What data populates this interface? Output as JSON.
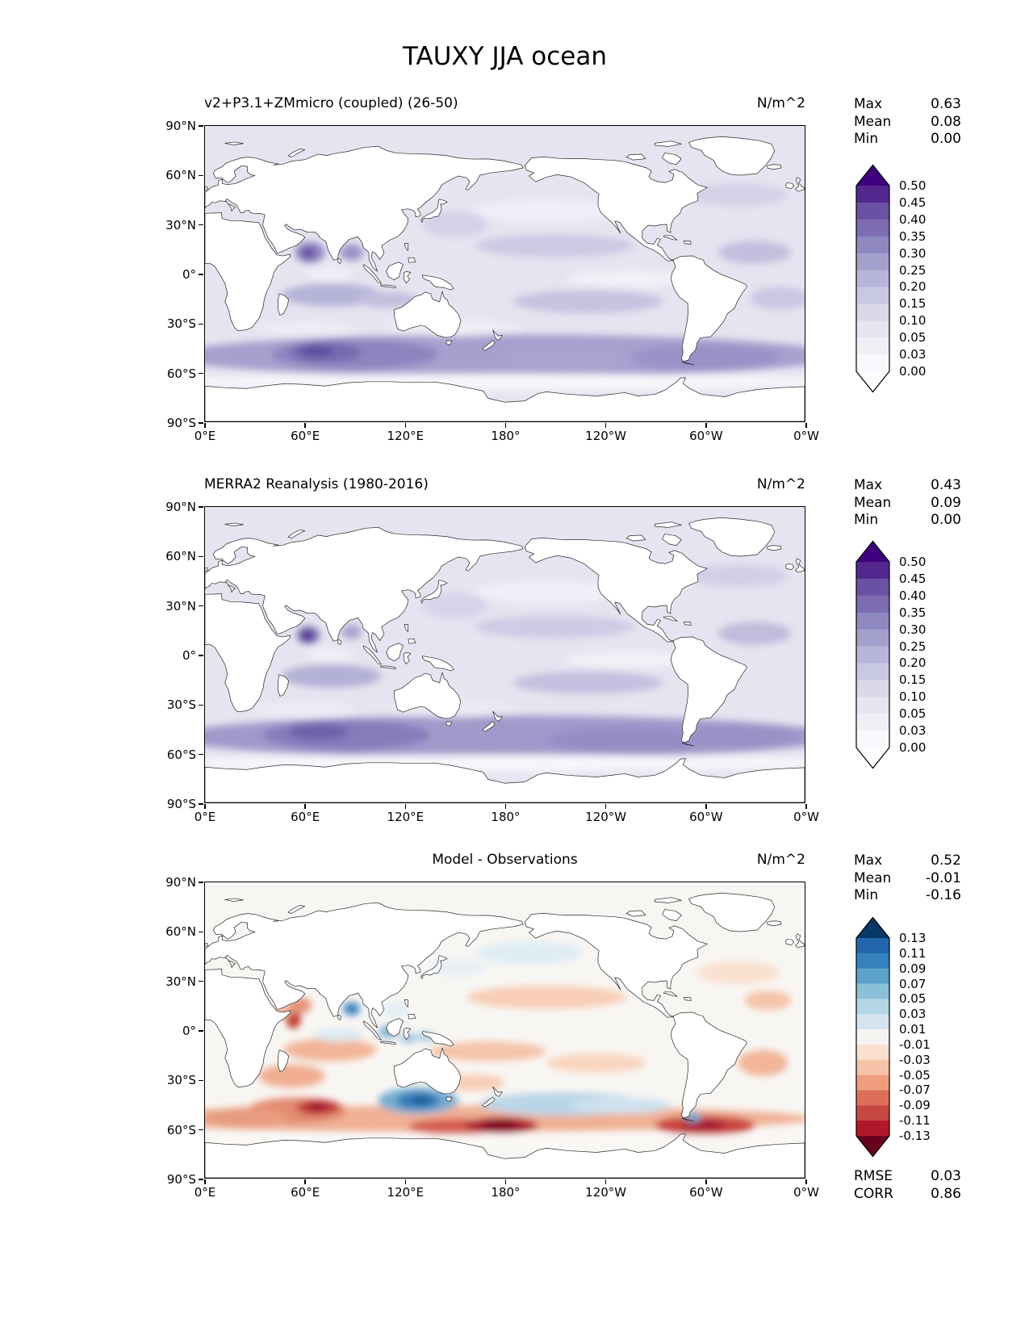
{
  "figure_title": "TAUXY JJA ocean",
  "panels": [
    {
      "title": "v2+P3.1+ZMmicro (coupled) (26-50)",
      "units": "N/m^2",
      "stats": [
        {
          "label": "Max",
          "value": "0.63"
        },
        {
          "label": "Mean",
          "value": "0.08"
        },
        {
          "label": "Min",
          "value": "0.00"
        }
      ]
    },
    {
      "title": "MERRA2 Reanalysis (1980-2016)",
      "units": "N/m^2",
      "stats": [
        {
          "label": "Max",
          "value": "0.43"
        },
        {
          "label": "Mean",
          "value": "0.09"
        },
        {
          "label": "Min",
          "value": "0.00"
        }
      ]
    },
    {
      "title": "Model - Observations",
      "units": "N/m^2",
      "stats": [
        {
          "label": "Max",
          "value": "0.52"
        },
        {
          "label": "Mean",
          "value": "-0.01"
        },
        {
          "label": "Min",
          "value": "-0.16"
        }
      ]
    }
  ],
  "summary": [
    {
      "label": "RMSE",
      "value": "0.03"
    },
    {
      "label": "CORR",
      "value": "0.86"
    }
  ],
  "axes": {
    "lon_labels": [
      "0°E",
      "60°E",
      "120°E",
      "180°",
      "120°W",
      "60°W",
      "0°W"
    ],
    "lat_labels": [
      "90°N",
      "60°N",
      "30°N",
      "0°",
      "30°S",
      "60°S",
      "90°S"
    ]
  },
  "colorbars": [
    {
      "ticks": [
        "0.50",
        "0.45",
        "0.40",
        "0.35",
        "0.30",
        "0.25",
        "0.20",
        "0.15",
        "0.10",
        "0.05",
        "0.03",
        "0.00"
      ],
      "extend_top": "#3f007d",
      "extend_bottom": "#fcfbfd",
      "segment_colors": [
        "#54278f",
        "#6a51a3",
        "#7d6cb0",
        "#8f88c0",
        "#a3a0cd",
        "#b7b5d9",
        "#c9c8e2",
        "#d9d9ea",
        "#e6e5f1",
        "#f0eff6",
        "#f8f7fb"
      ]
    },
    {
      "ticks": [
        "0.50",
        "0.45",
        "0.40",
        "0.35",
        "0.30",
        "0.25",
        "0.20",
        "0.15",
        "0.10",
        "0.05",
        "0.03",
        "0.00"
      ],
      "extend_top": "#3f007d",
      "extend_bottom": "#fcfbfd",
      "segment_colors": [
        "#54278f",
        "#6a51a3",
        "#7d6cb0",
        "#8f88c0",
        "#a3a0cd",
        "#b7b5d9",
        "#c9c8e2",
        "#d9d9ea",
        "#e6e5f1",
        "#f0eff6",
        "#f8f7fb"
      ]
    },
    {
      "ticks": [
        "0.13",
        "0.11",
        "0.09",
        "0.07",
        "0.05",
        "0.03",
        "0.01",
        "-0.01",
        "-0.03",
        "-0.05",
        "-0.07",
        "-0.09",
        "-0.11",
        "-0.13"
      ],
      "extend_top": "#083865",
      "extend_bottom": "#67001f",
      "segment_colors": [
        "#2166ac",
        "#3581bc",
        "#5ca2cb",
        "#8bc0da",
        "#b4d6e7",
        "#d4e5f0",
        "#f6f4f1",
        "#fbe0d1",
        "#f7c3a8",
        "#ef9d7d",
        "#dd6f5a",
        "#c74843",
        "#b2182b"
      ]
    }
  ],
  "chart_data": {
    "type": "heatmap",
    "description": "Three-panel latitude/longitude filled-contour comparison of JJA zonal surface wind stress (TAUXY) over the ocean: model, MERRA2 reanalysis, and their difference. Land is masked white.",
    "projection": "equirectangular, longitude 0E to 0W (0-360), latitude 90S to 90N",
    "x_ticks_deg_east": [
      0,
      60,
      120,
      180,
      240,
      300,
      360
    ],
    "y_ticks_deg_north": [
      90,
      60,
      30,
      0,
      -30,
      -60,
      -90
    ],
    "panels": [
      {
        "title": "v2+P3.1+ZMmicro (coupled) (26-50)",
        "units": "N/m^2",
        "colormap": "Purples",
        "contour_levels": [
          0.0,
          0.03,
          0.05,
          0.1,
          0.15,
          0.2,
          0.25,
          0.3,
          0.35,
          0.4,
          0.45,
          0.5
        ],
        "max": 0.63,
        "mean": 0.08,
        "min": 0.0,
        "features": "Strong band 0.25-0.45 across Southern Ocean 40-60S (maximum in Indian sector), local maxima in Arabian Sea and Bay of Bengal, moderate trade-wind bands, near-zero along equatorial east Pacific"
      },
      {
        "title": "MERRA2 Reanalysis (1980-2016)",
        "units": "N/m^2",
        "colormap": "Purples",
        "contour_levels": [
          0.0,
          0.03,
          0.05,
          0.1,
          0.15,
          0.2,
          0.25,
          0.3,
          0.35,
          0.4,
          0.45,
          0.5
        ],
        "max": 0.43,
        "mean": 0.09,
        "min": 0.0,
        "features": "Similar Southern Ocean band, strongest localized maximum in western Arabian Sea (Somali jet), moderate trade-wind bands"
      },
      {
        "title": "Model - Observations",
        "units": "N/m^2",
        "colormap": "RdBu",
        "contour_levels": [
          -0.13,
          -0.11,
          -0.09,
          -0.07,
          -0.05,
          -0.03,
          -0.01,
          0.01,
          0.03,
          0.05,
          0.07,
          0.09,
          0.11,
          0.13
        ],
        "max": 0.52,
        "mean": -0.01,
        "min": -0.16,
        "rmse": 0.03,
        "corr": 0.86,
        "features": "Large positive (red) biases along 45-60S with cores south of Africa/Indian sector, south of New Zealand and in SE Pacific; negative (blue) bias south of Australia and central South Pacific 40-50S; blue Bay of Bengal, red Somali coast, weak red trade-wind biases"
      }
    ]
  }
}
